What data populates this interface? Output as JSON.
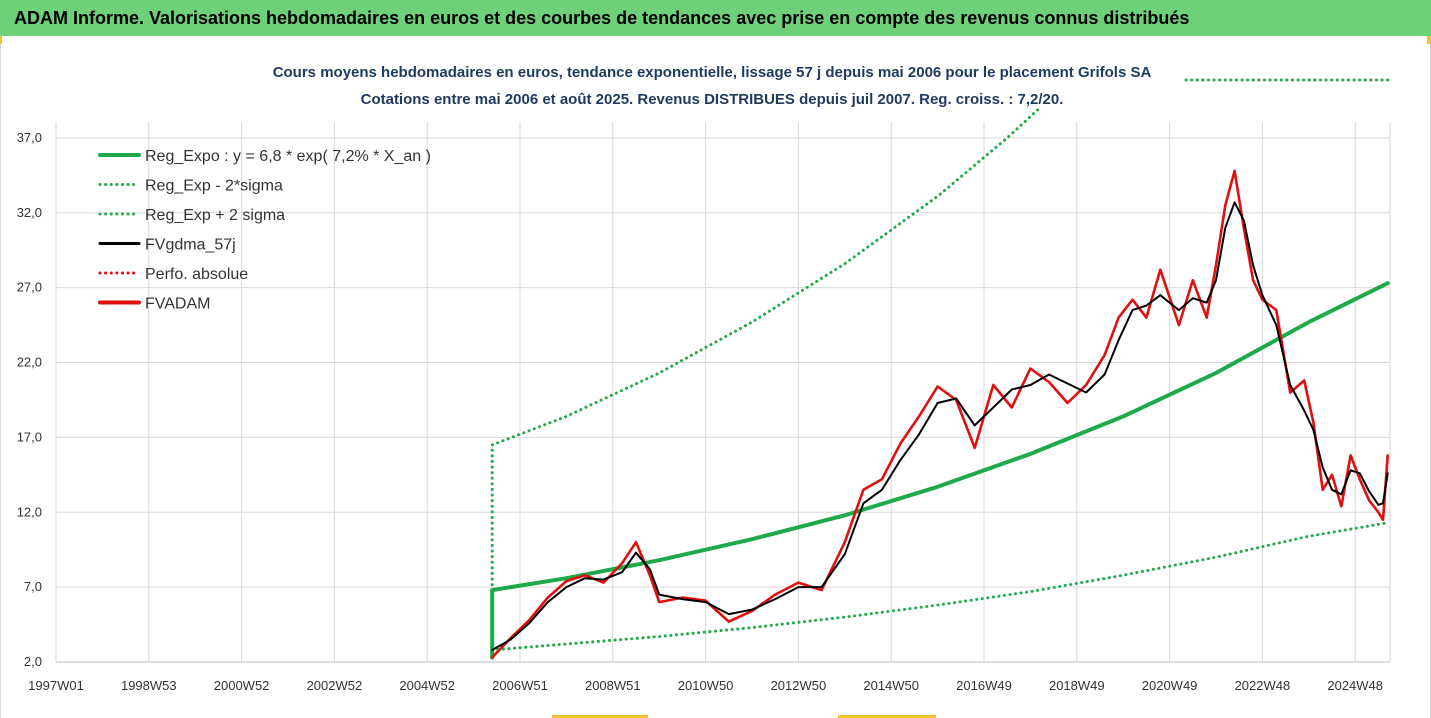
{
  "header": {
    "title": "ADAM Informe. Valorisations hebdomadaires en euros et des courbes de tendances avec prise en compte des revenus connus distribués"
  },
  "colors": {
    "header_bg": "#6fd07a",
    "regression": "#1faa4a",
    "bands": "#1faa4a",
    "smoothed": "#000000",
    "perf": "#e01010",
    "fvadam": "#e01010",
    "grid": "#d9d9d9"
  },
  "chart_data": {
    "type": "line",
    "title": "Cours moyens hebdomadaires en euros, tendance exponentielle, lissage 57 j depuis mai 2006 pour le placement Grifols SA",
    "subtitle": "Cotations entre mai 2006 et août 2025. Revenus DISTRIBUES depuis juil 2007. Reg. croiss. : 7,2/20.",
    "xlabel": "",
    "ylabel": "",
    "x_tick_labels": [
      "1997W01",
      "1998W53",
      "2000W52",
      "2002W52",
      "2004W52",
      "2006W51",
      "2008W51",
      "2010W50",
      "2012W50",
      "2014W50",
      "2016W49",
      "2018W49",
      "2020W49",
      "2022W48",
      "2024W48"
    ],
    "x_tick_years": [
      1997.0,
      1999.0,
      2001.0,
      2003.0,
      2005.0,
      2007.0,
      2009.0,
      2011.0,
      2013.0,
      2015.0,
      2017.0,
      2019.0,
      2021.0,
      2023.0,
      2025.0
    ],
    "xlim": [
      1997.0,
      2025.75
    ],
    "y_tick_labels": [
      "2,0",
      "7,0",
      "12,0",
      "17,0",
      "22,0",
      "27,0",
      "32,0",
      "37,0"
    ],
    "ylim": [
      2.0,
      39.0
    ],
    "grid": true,
    "legend_position": "top-left",
    "series": [
      {
        "name": "Reg_Expo : y = 6,8 * exp( 7,2% *  X_an )",
        "style": "solid",
        "color": "#1faa4a",
        "points": [
          [
            2006.4,
            2.3
          ],
          [
            2006.4,
            6.8
          ],
          [
            2008.0,
            7.6
          ],
          [
            2010.0,
            8.8
          ],
          [
            2012.0,
            10.2
          ],
          [
            2014.0,
            11.8
          ],
          [
            2016.0,
            13.7
          ],
          [
            2018.0,
            15.9
          ],
          [
            2020.0,
            18.4
          ],
          [
            2022.0,
            21.3
          ],
          [
            2024.0,
            24.7
          ],
          [
            2025.7,
            27.3
          ]
        ]
      },
      {
        "name": "Reg_Exp - 2*sigma",
        "style": "dotted",
        "color": "#1faa4a",
        "points": [
          [
            2006.4,
            2.8
          ],
          [
            2008.0,
            3.2
          ],
          [
            2010.0,
            3.7
          ],
          [
            2012.0,
            4.3
          ],
          [
            2014.0,
            5.0
          ],
          [
            2016.0,
            5.8
          ],
          [
            2018.0,
            6.7
          ],
          [
            2020.0,
            7.8
          ],
          [
            2022.0,
            9.0
          ],
          [
            2024.0,
            10.4
          ],
          [
            2025.7,
            11.3
          ]
        ]
      },
      {
        "name": "Reg_Exp + 2 sigma",
        "style": "dotted",
        "color": "#1faa4a",
        "points": [
          [
            2006.4,
            2.3
          ],
          [
            2006.4,
            16.5
          ],
          [
            2008.0,
            18.4
          ],
          [
            2010.0,
            21.3
          ],
          [
            2012.0,
            24.7
          ],
          [
            2014.0,
            28.6
          ],
          [
            2016.0,
            33.1
          ],
          [
            2017.5,
            37.0
          ],
          [
            2018.2,
            39.0
          ]
        ]
      },
      {
        "name": "FVgdma_57j",
        "style": "solid",
        "color": "#000000",
        "points": [
          [
            2006.4,
            2.8
          ],
          [
            2006.8,
            3.5
          ],
          [
            2007.2,
            4.6
          ],
          [
            2007.6,
            6.0
          ],
          [
            2008.0,
            7.0
          ],
          [
            2008.4,
            7.6
          ],
          [
            2008.8,
            7.5
          ],
          [
            2009.2,
            8.0
          ],
          [
            2009.5,
            9.3
          ],
          [
            2009.8,
            8.2
          ],
          [
            2010.0,
            6.5
          ],
          [
            2010.5,
            6.2
          ],
          [
            2011.0,
            6.0
          ],
          [
            2011.5,
            5.2
          ],
          [
            2012.0,
            5.5
          ],
          [
            2012.5,
            6.2
          ],
          [
            2013.0,
            7.0
          ],
          [
            2013.5,
            7.0
          ],
          [
            2014.0,
            9.2
          ],
          [
            2014.4,
            12.6
          ],
          [
            2014.8,
            13.5
          ],
          [
            2015.2,
            15.5
          ],
          [
            2015.6,
            17.2
          ],
          [
            2016.0,
            19.3
          ],
          [
            2016.4,
            19.6
          ],
          [
            2016.8,
            17.8
          ],
          [
            2017.2,
            19.0
          ],
          [
            2017.6,
            20.2
          ],
          [
            2018.0,
            20.5
          ],
          [
            2018.4,
            21.2
          ],
          [
            2018.8,
            20.6
          ],
          [
            2019.2,
            20.0
          ],
          [
            2019.6,
            21.2
          ],
          [
            2019.9,
            23.5
          ],
          [
            2020.2,
            25.5
          ],
          [
            2020.5,
            25.8
          ],
          [
            2020.8,
            26.5
          ],
          [
            2021.2,
            25.5
          ],
          [
            2021.5,
            26.3
          ],
          [
            2021.8,
            26.0
          ],
          [
            2022.0,
            27.5
          ],
          [
            2022.2,
            31.0
          ],
          [
            2022.4,
            32.7
          ],
          [
            2022.6,
            31.5
          ],
          [
            2022.8,
            28.5
          ],
          [
            2023.0,
            26.5
          ],
          [
            2023.3,
            24.5
          ],
          [
            2023.6,
            20.5
          ],
          [
            2023.9,
            18.8
          ],
          [
            2024.1,
            17.5
          ],
          [
            2024.3,
            15.0
          ],
          [
            2024.5,
            13.5
          ],
          [
            2024.7,
            13.2
          ],
          [
            2024.9,
            14.8
          ],
          [
            2025.1,
            14.6
          ],
          [
            2025.3,
            13.4
          ],
          [
            2025.5,
            12.5
          ],
          [
            2025.6,
            12.6
          ],
          [
            2025.7,
            14.6
          ]
        ]
      },
      {
        "name": "Perfo. absolue",
        "style": "dotted",
        "color": "#e01010",
        "points": []
      },
      {
        "name": "FVADAM",
        "style": "solid",
        "color": "#e01010",
        "points": [
          [
            2006.4,
            2.3
          ],
          [
            2006.8,
            3.6
          ],
          [
            2007.2,
            4.8
          ],
          [
            2007.6,
            6.3
          ],
          [
            2008.0,
            7.4
          ],
          [
            2008.4,
            7.8
          ],
          [
            2008.8,
            7.3
          ],
          [
            2009.2,
            8.6
          ],
          [
            2009.5,
            10.0
          ],
          [
            2009.8,
            7.8
          ],
          [
            2010.0,
            6.0
          ],
          [
            2010.5,
            6.3
          ],
          [
            2011.0,
            6.1
          ],
          [
            2011.5,
            4.7
          ],
          [
            2012.0,
            5.4
          ],
          [
            2012.5,
            6.5
          ],
          [
            2013.0,
            7.3
          ],
          [
            2013.5,
            6.8
          ],
          [
            2014.0,
            10.0
          ],
          [
            2014.4,
            13.5
          ],
          [
            2014.8,
            14.2
          ],
          [
            2015.2,
            16.6
          ],
          [
            2015.6,
            18.4
          ],
          [
            2016.0,
            20.4
          ],
          [
            2016.4,
            19.5
          ],
          [
            2016.8,
            16.3
          ],
          [
            2017.2,
            20.5
          ],
          [
            2017.6,
            19.0
          ],
          [
            2018.0,
            21.6
          ],
          [
            2018.4,
            20.7
          ],
          [
            2018.8,
            19.3
          ],
          [
            2019.2,
            20.5
          ],
          [
            2019.6,
            22.5
          ],
          [
            2019.9,
            25.0
          ],
          [
            2020.2,
            26.2
          ],
          [
            2020.5,
            25.0
          ],
          [
            2020.8,
            28.2
          ],
          [
            2021.2,
            24.5
          ],
          [
            2021.5,
            27.5
          ],
          [
            2021.8,
            25.0
          ],
          [
            2022.0,
            28.5
          ],
          [
            2022.2,
            32.5
          ],
          [
            2022.4,
            34.8
          ],
          [
            2022.6,
            31.0
          ],
          [
            2022.8,
            27.5
          ],
          [
            2023.0,
            26.2
          ],
          [
            2023.3,
            25.5
          ],
          [
            2023.6,
            20.0
          ],
          [
            2023.9,
            20.8
          ],
          [
            2024.1,
            18.0
          ],
          [
            2024.3,
            13.5
          ],
          [
            2024.5,
            14.5
          ],
          [
            2024.7,
            12.4
          ],
          [
            2024.9,
            15.8
          ],
          [
            2025.1,
            14.2
          ],
          [
            2025.3,
            12.8
          ],
          [
            2025.5,
            12.0
          ],
          [
            2025.6,
            11.5
          ],
          [
            2025.7,
            15.8
          ]
        ]
      }
    ]
  }
}
